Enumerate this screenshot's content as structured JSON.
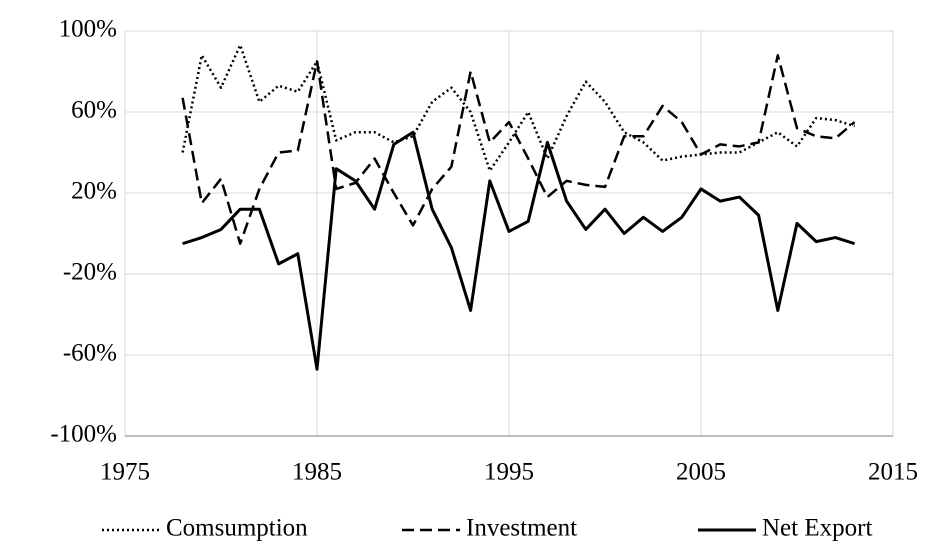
{
  "chart_data": {
    "type": "line",
    "x": [
      1978,
      1979,
      1980,
      1981,
      1982,
      1983,
      1984,
      1985,
      1986,
      1987,
      1988,
      1989,
      1990,
      1991,
      1992,
      1993,
      1994,
      1995,
      1996,
      1997,
      1998,
      1999,
      2000,
      2001,
      2002,
      2003,
      2004,
      2005,
      2006,
      2007,
      2008,
      2009,
      2010,
      2011,
      2012,
      2013
    ],
    "series": [
      {
        "name": "Comsumption",
        "color": "#000000",
        "style": "dotted",
        "values": [
          40,
          88,
          72,
          93,
          65,
          73,
          70,
          85,
          46,
          50,
          50,
          45,
          48,
          65,
          72,
          60,
          31,
          45,
          60,
          37,
          58,
          75,
          65,
          50,
          45,
          36,
          38,
          39,
          40,
          40,
          45,
          50,
          43,
          57,
          56,
          53
        ]
      },
      {
        "name": "Investment",
        "color": "#000000",
        "style": "dashed",
        "values": [
          67,
          15,
          27,
          -5,
          22,
          40,
          41,
          85,
          22,
          25,
          37,
          20,
          4,
          22,
          33,
          80,
          45,
          55,
          37,
          18,
          26,
          24,
          23,
          48,
          48,
          63,
          55,
          39,
          44,
          43,
          45,
          88,
          52,
          48,
          47,
          55
        ]
      },
      {
        "name": "Net Export",
        "color": "#000000",
        "style": "solid",
        "values": [
          -5,
          -2,
          2,
          12,
          12,
          -15,
          -10,
          -67,
          32,
          26,
          12,
          44,
          50,
          12,
          -7,
          -38,
          26,
          1,
          6,
          45,
          16,
          2,
          12,
          0,
          8,
          1,
          8,
          22,
          16,
          18,
          9,
          -38,
          5,
          -4,
          -2,
          -5
        ]
      }
    ],
    "xlim": [
      1975,
      2015
    ],
    "xticks": [
      1975,
      1985,
      1995,
      2005,
      2015
    ],
    "ylim": [
      -100,
      100
    ],
    "yticks": [
      {
        "value": -100,
        "label": "-100%"
      },
      {
        "value": -60,
        "label": "-60%"
      },
      {
        "value": -20,
        "label": "-20%"
      },
      {
        "value": 20,
        "label": "20%"
      },
      {
        "value": 60,
        "label": "60%"
      },
      {
        "value": 100,
        "label": "100%"
      }
    ],
    "grid": true,
    "legend": "bottom"
  }
}
